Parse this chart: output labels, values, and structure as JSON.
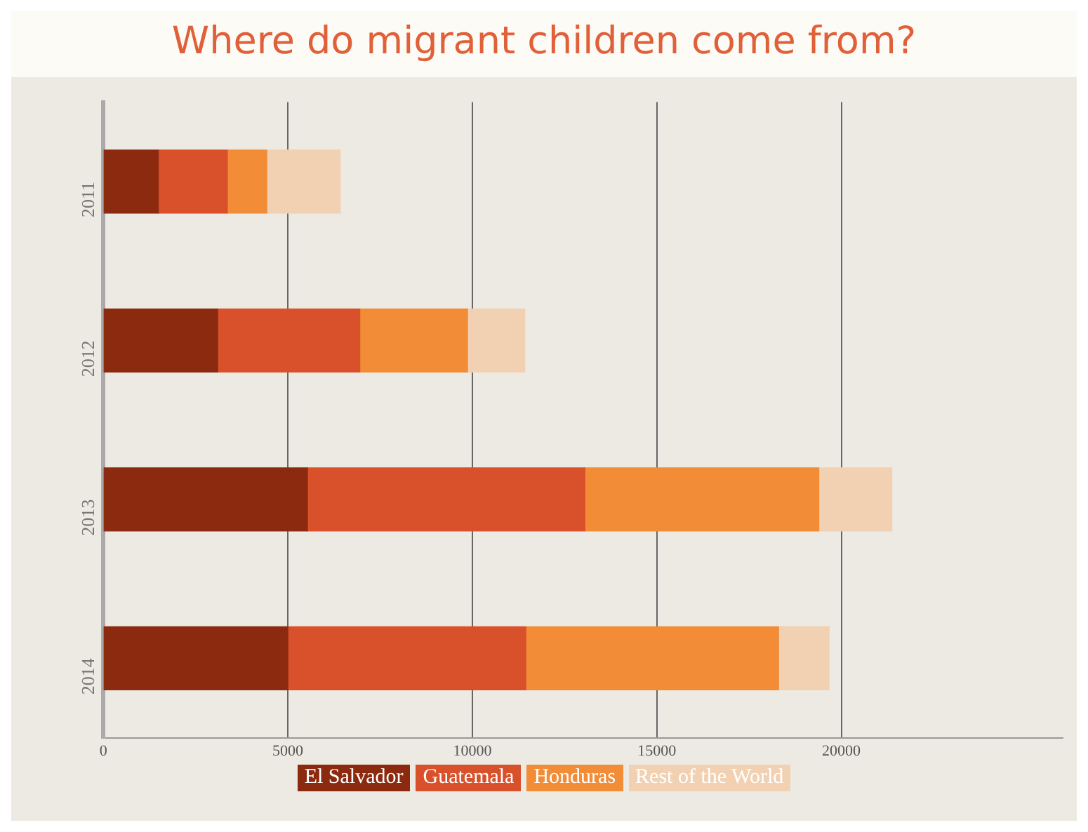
{
  "chart_data": {
    "type": "bar",
    "title": "Where do migrant children come from?",
    "orientation": "horizontal",
    "stacked": true,
    "categories": [
      "2011",
      "2012",
      "2013",
      "2014"
    ],
    "series": [
      {
        "name": "El Salvador",
        "color": "#8b2a0e",
        "values": [
          1490,
          3100,
          5530,
          5000
        ]
      },
      {
        "name": "Guatemala",
        "color": "#d9512a",
        "values": [
          1870,
          3850,
          7520,
          6450
        ]
      },
      {
        "name": "Honduras",
        "color": "#f28c36",
        "values": [
          1070,
          2920,
          6340,
          6850
        ]
      },
      {
        "name": "Rest of the World",
        "color": "#f2d1b3",
        "values": [
          1990,
          1550,
          1980,
          1370
        ]
      }
    ],
    "xlim": [
      0,
      26000
    ],
    "xticks": [
      0,
      5000,
      10000,
      15000,
      20000
    ],
    "grid": "x",
    "legend": "bottom"
  }
}
